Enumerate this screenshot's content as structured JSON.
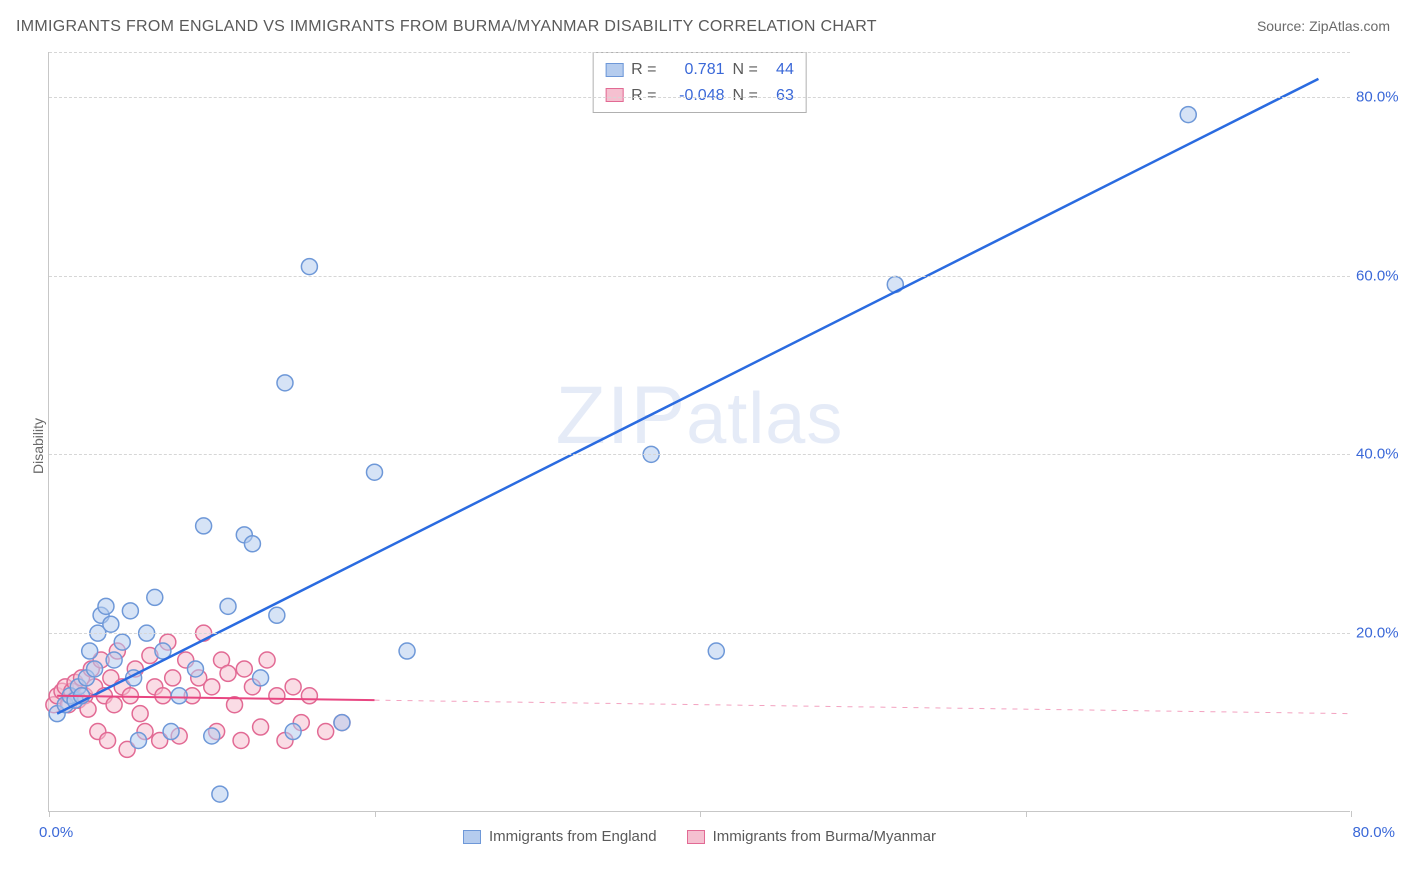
{
  "title": "IMMIGRANTS FROM ENGLAND VS IMMIGRANTS FROM BURMA/MYANMAR DISABILITY CORRELATION CHART",
  "source": "Source: ZipAtlas.com",
  "ylabel": "Disability",
  "watermark": "ZIPatlas",
  "chart": {
    "type": "scatter",
    "xlim": [
      0,
      80
    ],
    "ylim": [
      0,
      85
    ],
    "ytick_values": [
      20,
      40,
      60,
      80
    ],
    "ytick_labels": [
      "20.0%",
      "40.0%",
      "60.0%",
      "80.0%"
    ],
    "xtick_values": [
      0,
      20,
      40,
      60,
      80
    ],
    "xlabel_0": "0.0%",
    "xlabel_max": "80.0%",
    "background_color": "#ffffff",
    "grid_color": "#d6d6d6",
    "axis_color": "#c7c7c7",
    "marker_radius": 8,
    "marker_stroke_width": 1.5,
    "series": [
      {
        "name": "Immigrants from England",
        "fill": "#b5ccee",
        "stroke": "#6e98d8",
        "fill_opacity": 0.55,
        "r_value": "0.781",
        "n_value": "44",
        "line": {
          "x1": 0.5,
          "y1": 11,
          "x2": 78,
          "y2": 82,
          "color": "#2a6be0",
          "width": 2.5,
          "dash_after_x": null
        },
        "points": [
          [
            0.5,
            11
          ],
          [
            1,
            12
          ],
          [
            1.3,
            13
          ],
          [
            1.6,
            12.5
          ],
          [
            1.8,
            14
          ],
          [
            2,
            13
          ],
          [
            2.3,
            15
          ],
          [
            2.5,
            18
          ],
          [
            2.8,
            16
          ],
          [
            3,
            20
          ],
          [
            3.2,
            22
          ],
          [
            3.5,
            23
          ],
          [
            3.8,
            21
          ],
          [
            4,
            17
          ],
          [
            4.5,
            19
          ],
          [
            5,
            22.5
          ],
          [
            5.2,
            15
          ],
          [
            5.5,
            8
          ],
          [
            6,
            20
          ],
          [
            6.5,
            24
          ],
          [
            7,
            18
          ],
          [
            7.5,
            9
          ],
          [
            8,
            13
          ],
          [
            9,
            16
          ],
          [
            9.5,
            32
          ],
          [
            10,
            8.5
          ],
          [
            10.5,
            2
          ],
          [
            11,
            23
          ],
          [
            12,
            31
          ],
          [
            12.5,
            30
          ],
          [
            13,
            15
          ],
          [
            14,
            22
          ],
          [
            14.5,
            48
          ],
          [
            15,
            9
          ],
          [
            16,
            61
          ],
          [
            18,
            10
          ],
          [
            20,
            38
          ],
          [
            22,
            18
          ],
          [
            37,
            40
          ],
          [
            41,
            18
          ],
          [
            52,
            59
          ],
          [
            70,
            78
          ]
        ]
      },
      {
        "name": "Immigrants from Burma/Myanmar",
        "fill": "#f5c0d0",
        "stroke": "#e26a94",
        "fill_opacity": 0.55,
        "r_value": "-0.048",
        "n_value": "63",
        "line": {
          "x1": 0.5,
          "y1": 13,
          "x2": 80,
          "y2": 11,
          "color": "#e84681",
          "width": 2,
          "dash_after_x": 20
        },
        "points": [
          [
            0.3,
            12
          ],
          [
            0.5,
            13
          ],
          [
            0.8,
            13.5
          ],
          [
            1,
            14
          ],
          [
            1.2,
            12
          ],
          [
            1.4,
            13.5
          ],
          [
            1.6,
            14.5
          ],
          [
            1.8,
            12.5
          ],
          [
            2,
            15
          ],
          [
            2.2,
            13
          ],
          [
            2.4,
            11.5
          ],
          [
            2.6,
            16
          ],
          [
            2.8,
            14
          ],
          [
            3,
            9
          ],
          [
            3.2,
            17
          ],
          [
            3.4,
            13
          ],
          [
            3.6,
            8
          ],
          [
            3.8,
            15
          ],
          [
            4,
            12
          ],
          [
            4.2,
            18
          ],
          [
            4.5,
            14
          ],
          [
            4.8,
            7
          ],
          [
            5,
            13
          ],
          [
            5.3,
            16
          ],
          [
            5.6,
            11
          ],
          [
            5.9,
            9
          ],
          [
            6.2,
            17.5
          ],
          [
            6.5,
            14
          ],
          [
            6.8,
            8
          ],
          [
            7,
            13
          ],
          [
            7.3,
            19
          ],
          [
            7.6,
            15
          ],
          [
            8,
            8.5
          ],
          [
            8.4,
            17
          ],
          [
            8.8,
            13
          ],
          [
            9.2,
            15
          ],
          [
            9.5,
            20
          ],
          [
            10,
            14
          ],
          [
            10.3,
            9
          ],
          [
            10.6,
            17
          ],
          [
            11,
            15.5
          ],
          [
            11.4,
            12
          ],
          [
            11.8,
            8
          ],
          [
            12,
            16
          ],
          [
            12.5,
            14
          ],
          [
            13,
            9.5
          ],
          [
            13.4,
            17
          ],
          [
            14,
            13
          ],
          [
            14.5,
            8
          ],
          [
            15,
            14
          ],
          [
            15.5,
            10
          ],
          [
            16,
            13
          ],
          [
            17,
            9
          ],
          [
            18,
            10
          ]
        ]
      }
    ],
    "legend_top": {
      "r_label": "R =",
      "n_label": "N ="
    },
    "legend_bottom_labels": [
      "Immigrants from England",
      "Immigrants from Burma/Myanmar"
    ]
  }
}
